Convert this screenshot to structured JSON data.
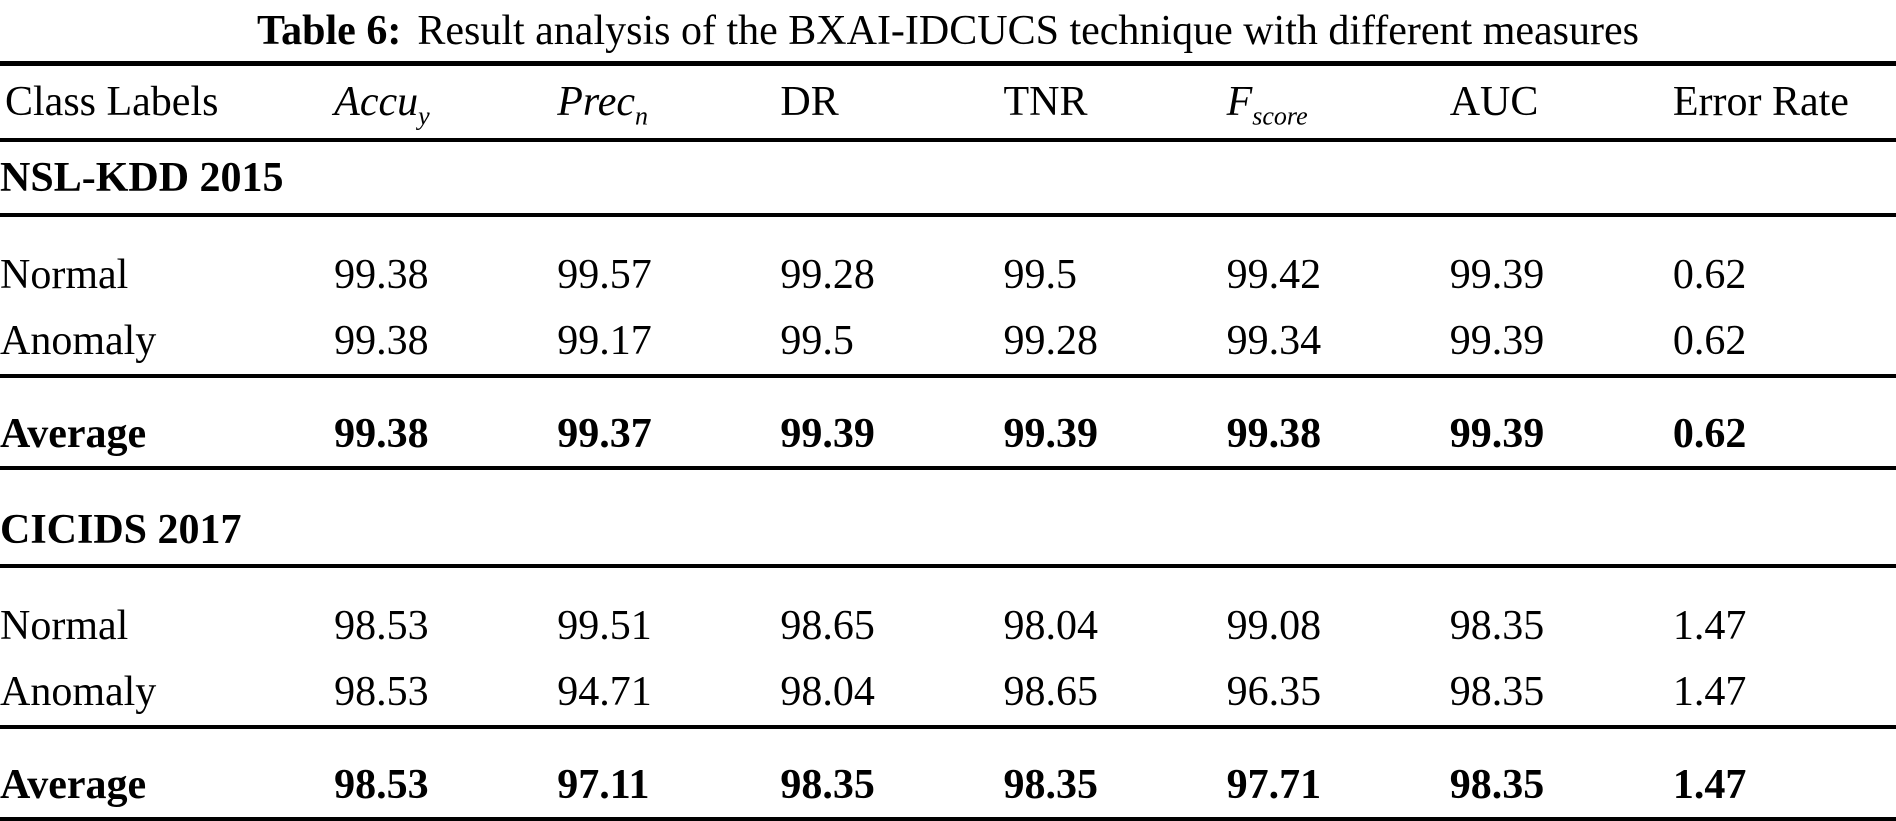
{
  "caption": {
    "label": "Table 6:",
    "text": "Result analysis of the BXAI-IDCUCS technique with different measures"
  },
  "table": {
    "columns": [
      {
        "label": "Class Labels",
        "sub": ""
      },
      {
        "label": "Accu",
        "sub": "y"
      },
      {
        "label": "Prec",
        "sub": "n"
      },
      {
        "label": "DR",
        "sub": ""
      },
      {
        "label": "TNR",
        "sub": ""
      },
      {
        "label": "F",
        "sub": "score"
      },
      {
        "label": "AUC",
        "sub": ""
      },
      {
        "label": "Error Rate",
        "sub": ""
      }
    ],
    "sections": [
      {
        "name": "NSL-KDD 2015",
        "rows": [
          {
            "label": "Normal",
            "values": [
              "99.38",
              "99.57",
              "99.28",
              "99.5",
              "99.42",
              "99.39",
              "0.62"
            ]
          },
          {
            "label": "Anomaly",
            "values": [
              "99.38",
              "99.17",
              "99.5",
              "99.28",
              "99.34",
              "99.39",
              "0.62"
            ]
          }
        ],
        "average": {
          "label": "Average",
          "values": [
            "99.38",
            "99.37",
            "99.39",
            "99.39",
            "99.38",
            "99.39",
            "0.62"
          ]
        }
      },
      {
        "name": "CICIDS 2017",
        "rows": [
          {
            "label": "Normal",
            "values": [
              "98.53",
              "99.51",
              "98.65",
              "98.04",
              "99.08",
              "98.35",
              "1.47"
            ]
          },
          {
            "label": "Anomaly",
            "values": [
              "98.53",
              "94.71",
              "98.04",
              "98.65",
              "96.35",
              "98.35",
              "1.47"
            ]
          }
        ],
        "average": {
          "label": "Average",
          "values": [
            "98.53",
            "97.11",
            "98.35",
            "98.35",
            "97.71",
            "98.35",
            "1.47"
          ]
        }
      }
    ]
  }
}
